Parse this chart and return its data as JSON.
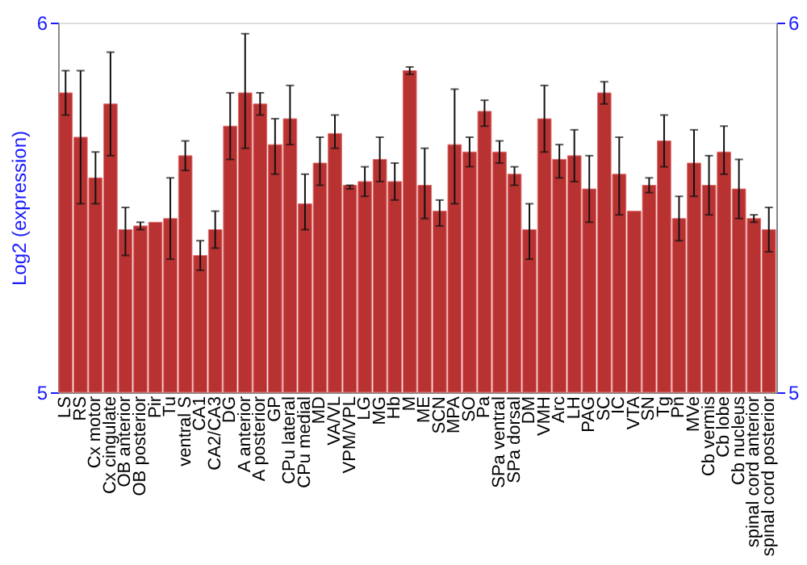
{
  "chart_data": {
    "type": "bar",
    "ylabel": "Log2 (expression)",
    "categories": [
      "LS",
      "RS",
      "Cx motor",
      "Cx cingulate",
      "OB anterior",
      "OB posterior",
      "Pir",
      "Tu",
      "ventral S",
      "CA1",
      "CA2/CA3",
      "DG",
      "A anterior",
      "A posterior",
      "GP",
      "CPu lateral",
      "CPu medial",
      "MD",
      "VA/VL",
      "VPM/VPL",
      "LG",
      "MG",
      "Hb",
      "M",
      "ME",
      "SCN",
      "MPA",
      "SO",
      "Pa",
      "SPa ventral",
      "SPa dorsal",
      "DM",
      "VMH",
      "Arc",
      "LH",
      "PAG",
      "SC",
      "IC",
      "VTA",
      "SN",
      "Tg",
      "Pn",
      "MVe",
      "Cb vermis",
      "Cb lobe",
      "Cb nucleus",
      "spinal cord anterior",
      "spinal cord posterior"
    ],
    "values": [
      5.81,
      5.69,
      5.58,
      5.78,
      5.44,
      5.45,
      5.46,
      5.47,
      5.64,
      5.37,
      5.44,
      5.72,
      5.81,
      5.78,
      5.67,
      5.74,
      5.51,
      5.62,
      5.7,
      5.56,
      5.57,
      5.63,
      5.57,
      5.87,
      5.56,
      5.49,
      5.67,
      5.65,
      5.76,
      5.65,
      5.59,
      5.44,
      5.74,
      5.63,
      5.64,
      5.55,
      5.81,
      5.59,
      5.49,
      5.56,
      5.68,
      5.47,
      5.62,
      5.56,
      5.65,
      5.55,
      5.47,
      5.44
    ],
    "errors": [
      [
        5.75,
        5.87
      ],
      [
        5.51,
        5.87
      ],
      [
        5.51,
        5.65
      ],
      [
        5.64,
        5.92
      ],
      [
        5.37,
        5.5
      ],
      [
        5.44,
        5.46
      ],
      null,
      [
        5.36,
        5.58
      ],
      [
        5.6,
        5.68
      ],
      [
        5.33,
        5.41
      ],
      [
        5.39,
        5.49
      ],
      [
        5.63,
        5.81
      ],
      [
        5.66,
        5.97
      ],
      [
        5.75,
        5.81
      ],
      [
        5.59,
        5.74
      ],
      [
        5.67,
        5.83
      ],
      [
        5.44,
        5.59
      ],
      [
        5.56,
        5.69
      ],
      [
        5.66,
        5.75
      ],
      [
        5.55,
        5.56
      ],
      [
        5.53,
        5.61
      ],
      [
        5.57,
        5.69
      ],
      [
        5.52,
        5.62
      ],
      [
        5.86,
        5.88
      ],
      [
        5.47,
        5.66
      ],
      [
        5.45,
        5.52
      ],
      [
        5.51,
        5.82
      ],
      [
        5.61,
        5.69
      ],
      [
        5.72,
        5.79
      ],
      [
        5.62,
        5.68
      ],
      [
        5.56,
        5.61
      ],
      [
        5.36,
        5.51
      ],
      [
        5.65,
        5.83
      ],
      [
        5.58,
        5.67
      ],
      [
        5.57,
        5.71
      ],
      [
        5.46,
        5.64
      ],
      [
        5.78,
        5.84
      ],
      [
        5.48,
        5.69
      ],
      null,
      [
        5.54,
        5.58
      ],
      [
        5.61,
        5.75
      ],
      [
        5.41,
        5.53
      ],
      [
        5.53,
        5.71
      ],
      [
        5.48,
        5.64
      ],
      [
        5.59,
        5.72
      ],
      [
        5.47,
        5.63
      ],
      [
        5.46,
        5.48
      ],
      [
        5.38,
        5.5
      ]
    ],
    "color": "#b93232",
    "ylim": [
      5,
      6
    ],
    "yticks": [
      5,
      6
    ],
    "y2lim": [
      5,
      6
    ],
    "y2ticks": [
      5,
      6
    ]
  }
}
